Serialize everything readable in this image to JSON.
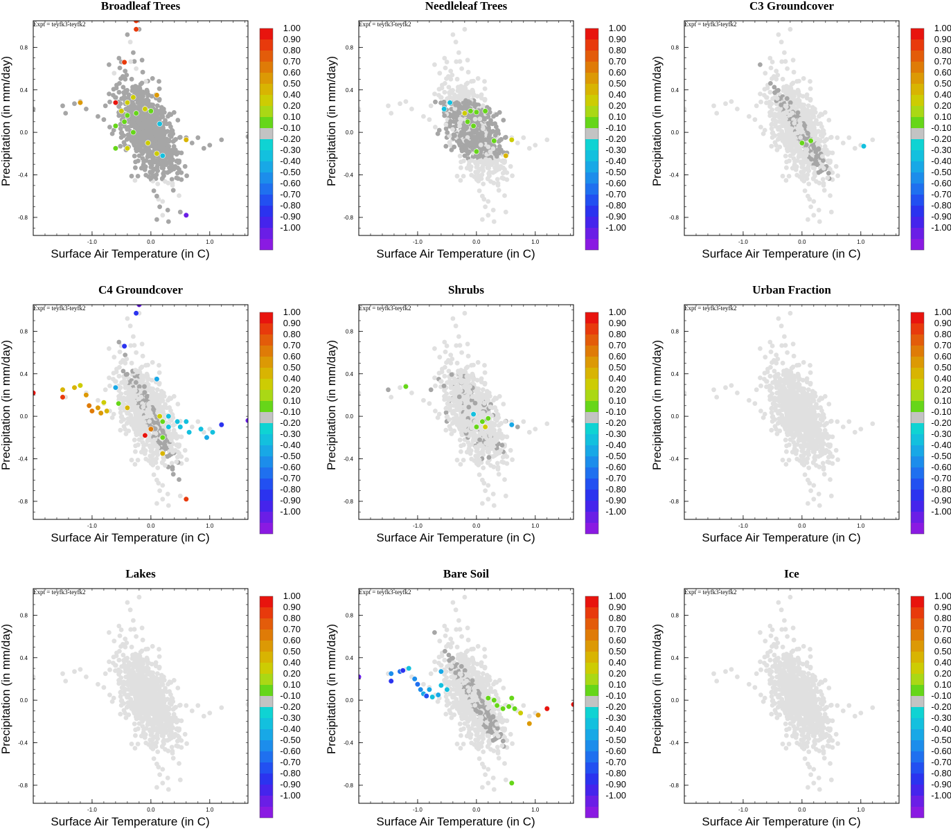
{
  "figure": {
    "expt_label": "Expt = teyfk3-teyfk2",
    "colorbar_ticks": [
      "1.00",
      "0.90",
      "0.80",
      "0.70",
      "0.60",
      "0.50",
      "0.40",
      "0.20",
      "0.10",
      "-0.10",
      "-0.20",
      "-0.30",
      "-0.40",
      "-0.50",
      "-0.60",
      "-0.70",
      "-0.80",
      "-0.90",
      "-1.00"
    ],
    "colorbar_colors": [
      "#e8140e",
      "#e83a0c",
      "#e35c0a",
      "#df7b07",
      "#dc9905",
      "#d8b402",
      "#cdcc03",
      "#aad815",
      "#66d619",
      "#c3c3c3",
      "#0fd3d3",
      "#13c0de",
      "#18a8e6",
      "#1c8deb",
      "#1f70ef",
      "#2250f1",
      "#2b33ef",
      "#4524ec",
      "#6a1ee6",
      "#8a1ae2"
    ],
    "gray_dark": "#a6a6a6",
    "gray_light": "#e0e0e0"
  },
  "chart_data": [
    {
      "type": "scatter",
      "title": "Broadleaf Trees",
      "xlabel": "Surface Air Temperature (in C)",
      "ylabel": "Precipitation (in mm/day)",
      "xlim": [
        -2.0,
        1.65
      ],
      "ylim": [
        -0.97,
        1.05
      ],
      "xticks": [
        "-1.0",
        "0.0",
        "1.0"
      ],
      "yticks": [
        "0.8",
        "0.4",
        "0.0",
        "-0.4",
        "-0.8"
      ],
      "colorbar_range": [
        -1.0,
        1.0
      ],
      "background": "dark",
      "dark_region": "mid",
      "highlight_points": [
        {
          "x": -0.25,
          "y": 1.05,
          "c": 0.8
        },
        {
          "x": -0.25,
          "y": 0.97,
          "c": 0.8
        },
        {
          "x": -0.45,
          "y": 0.66,
          "c": 0.8
        },
        {
          "x": -1.2,
          "y": 0.28,
          "c": 0.5
        },
        {
          "x": -0.6,
          "y": 0.28,
          "c": 0.9
        },
        {
          "x": -0.4,
          "y": 0.28,
          "c": 0.3
        },
        {
          "x": 0.1,
          "y": 0.35,
          "c": 0.5
        },
        {
          "x": -0.3,
          "y": 0.33,
          "c": 0.3
        },
        {
          "x": -0.5,
          "y": 0.2,
          "c": 0.3
        },
        {
          "x": -0.4,
          "y": 0.16,
          "c": 0.15
        },
        {
          "x": -0.25,
          "y": 0.18,
          "c": 0.15
        },
        {
          "x": -0.1,
          "y": 0.22,
          "c": 0.3
        },
        {
          "x": 0.0,
          "y": 0.2,
          "c": 0.15
        },
        {
          "x": -0.6,
          "y": 0.06,
          "c": 0.15
        },
        {
          "x": -0.45,
          "y": 0.1,
          "c": 0.15
        },
        {
          "x": 0.15,
          "y": 0.08,
          "c": -0.3
        },
        {
          "x": -0.3,
          "y": 0.0,
          "c": 0.15
        },
        {
          "x": -0.6,
          "y": -0.15,
          "c": 0.15
        },
        {
          "x": -0.4,
          "y": -0.15,
          "c": 0.3
        },
        {
          "x": -0.05,
          "y": -0.1,
          "c": 0.3
        },
        {
          "x": 0.1,
          "y": -0.2,
          "c": 0.3
        },
        {
          "x": 0.6,
          "y": -0.07,
          "c": 0.4
        },
        {
          "x": 0.2,
          "y": -0.22,
          "c": -0.3
        },
        {
          "x": 0.6,
          "y": -0.78,
          "c": -0.9
        }
      ]
    },
    {
      "type": "scatter",
      "title": "Needleleaf Trees",
      "xlabel": "Surface Air Temperature (in C)",
      "ylabel": "Precipitation (in mm/day)",
      "xlim": [
        -2.0,
        1.65
      ],
      "ylim": [
        -0.97,
        1.05
      ],
      "xticks": [
        "-1.0",
        "0.0",
        "1.0"
      ],
      "yticks": [
        "0.8",
        "0.4",
        "0.0",
        "-0.4",
        "-0.8"
      ],
      "colorbar_range": [
        -1.0,
        1.0
      ],
      "background": "mixed",
      "dark_region": "band",
      "highlight_points": [
        {
          "x": -0.45,
          "y": 0.28,
          "c": -0.25
        },
        {
          "x": -0.2,
          "y": 0.18,
          "c": 0.3
        },
        {
          "x": -0.1,
          "y": 0.2,
          "c": 0.15
        },
        {
          "x": 0.0,
          "y": 0.19,
          "c": 0.15
        },
        {
          "x": 0.15,
          "y": 0.2,
          "c": 0.15
        },
        {
          "x": -0.15,
          "y": 0.1,
          "c": 0.15
        },
        {
          "x": -0.05,
          "y": 0.06,
          "c": 0.15
        },
        {
          "x": -0.55,
          "y": 0.22,
          "c": -0.25
        },
        {
          "x": 0.3,
          "y": -0.08,
          "c": 0.15
        },
        {
          "x": 0.6,
          "y": -0.07,
          "c": 0.3
        },
        {
          "x": 0.5,
          "y": -0.22,
          "c": 0.4
        },
        {
          "x": 0.0,
          "y": -0.18,
          "c": 0.15
        }
      ]
    },
    {
      "type": "scatter",
      "title": "C3 Groundcover",
      "xlabel": "Surface Air Temperature (in C)",
      "ylabel": "Precipitation (in mm/day)",
      "xlim": [
        -2.0,
        1.65
      ],
      "ylim": [
        -0.97,
        1.05
      ],
      "xticks": [
        "-1.0",
        "0.0",
        "1.0"
      ],
      "yticks": [
        "0.8",
        "0.4",
        "0.0",
        "-0.4",
        "-0.8"
      ],
      "colorbar_range": [
        -1.0,
        1.0
      ],
      "background": "light",
      "dark_region": "diagonal",
      "highlight_points": [
        {
          "x": 0.0,
          "y": -0.1,
          "c": 0.15
        },
        {
          "x": 0.15,
          "y": -0.08,
          "c": 0.15
        },
        {
          "x": 1.05,
          "y": -0.13,
          "c": -0.3
        }
      ]
    },
    {
      "type": "scatter",
      "title": "C4 Groundcover",
      "xlabel": "Surface Air Temperature (in C)",
      "ylabel": "Precipitation (in mm/day)",
      "xlim": [
        -2.0,
        1.65
      ],
      "ylim": [
        -0.97,
        1.05
      ],
      "xticks": [
        "-1.0",
        "0.0",
        "1.0"
      ],
      "yticks": [
        "0.8",
        "0.4",
        "0.0",
        "-0.4",
        "-0.8"
      ],
      "colorbar_range": [
        -1.0,
        1.0
      ],
      "background": "light",
      "dark_region": "diagonal-long",
      "highlight_points": [
        {
          "x": -2.0,
          "y": 0.22,
          "c": 0.9
        },
        {
          "x": -1.5,
          "y": 0.25,
          "c": 0.4
        },
        {
          "x": -1.5,
          "y": 0.18,
          "c": 0.8
        },
        {
          "x": -1.3,
          "y": 0.27,
          "c": 0.4
        },
        {
          "x": -1.2,
          "y": 0.29,
          "c": 0.3
        },
        {
          "x": -1.1,
          "y": 0.2,
          "c": 0.5
        },
        {
          "x": -1.05,
          "y": 0.1,
          "c": 0.6
        },
        {
          "x": -1.0,
          "y": 0.05,
          "c": 0.6
        },
        {
          "x": -0.9,
          "y": 0.08,
          "c": 0.5
        },
        {
          "x": -0.85,
          "y": 0.03,
          "c": 0.5
        },
        {
          "x": -0.8,
          "y": 0.13,
          "c": 0.3
        },
        {
          "x": -0.75,
          "y": 0.05,
          "c": 0.4
        },
        {
          "x": -0.6,
          "y": 0.27,
          "c": -0.4
        },
        {
          "x": -0.55,
          "y": 0.12,
          "c": 0.15
        },
        {
          "x": -0.4,
          "y": 0.08,
          "c": 0.4
        },
        {
          "x": -0.25,
          "y": 0.97,
          "c": -0.8
        },
        {
          "x": -0.2,
          "y": 1.05,
          "c": -0.9
        },
        {
          "x": -0.45,
          "y": 0.66,
          "c": -0.8
        },
        {
          "x": 0.1,
          "y": 0.35,
          "c": -0.4
        },
        {
          "x": 0.15,
          "y": 0.0,
          "c": 0.3
        },
        {
          "x": 0.2,
          "y": -0.05,
          "c": 0.15
        },
        {
          "x": 0.3,
          "y": 0.0,
          "c": -0.25
        },
        {
          "x": 0.3,
          "y": -0.1,
          "c": -0.3
        },
        {
          "x": 0.0,
          "y": -0.12,
          "c": 0.6
        },
        {
          "x": -0.1,
          "y": -0.18,
          "c": 0.9
        },
        {
          "x": 0.2,
          "y": -0.2,
          "c": 0.15
        },
        {
          "x": 0.45,
          "y": -0.05,
          "c": -0.25
        },
        {
          "x": 0.5,
          "y": -0.1,
          "c": -0.3
        },
        {
          "x": 0.6,
          "y": -0.05,
          "c": -0.25
        },
        {
          "x": 0.65,
          "y": -0.15,
          "c": -0.3
        },
        {
          "x": 0.85,
          "y": -0.12,
          "c": -0.3
        },
        {
          "x": 0.95,
          "y": -0.2,
          "c": -0.4
        },
        {
          "x": 1.05,
          "y": -0.15,
          "c": -0.3
        },
        {
          "x": 1.2,
          "y": -0.08,
          "c": -0.8
        },
        {
          "x": 1.65,
          "y": -0.04,
          "c": -0.9
        },
        {
          "x": 0.2,
          "y": -0.35,
          "c": 0.4
        },
        {
          "x": 0.6,
          "y": -0.78,
          "c": 0.8
        }
      ]
    },
    {
      "type": "scatter",
      "title": "Shrubs",
      "xlabel": "Surface Air Temperature (in C)",
      "ylabel": "Precipitation (in mm/day)",
      "xlim": [
        -2.0,
        1.65
      ],
      "ylim": [
        -0.97,
        1.05
      ],
      "xticks": [
        "-1.0",
        "0.0",
        "1.0"
      ],
      "yticks": [
        "0.8",
        "0.4",
        "0.0",
        "-0.4",
        "-0.8"
      ],
      "colorbar_range": [
        -1.0,
        1.0
      ],
      "background": "light",
      "dark_region": "sparse",
      "highlight_points": [
        {
          "x": -1.2,
          "y": 0.28,
          "c": 0.15
        },
        {
          "x": 0.2,
          "y": -0.02,
          "c": 0.15
        },
        {
          "x": 0.1,
          "y": -0.05,
          "c": 0.15
        },
        {
          "x": 0.0,
          "y": -0.1,
          "c": 0.15
        },
        {
          "x": 0.15,
          "y": -0.1,
          "c": 0.3
        },
        {
          "x": 0.6,
          "y": -0.08,
          "c": -0.4
        },
        {
          "x": -0.05,
          "y": 0.02,
          "c": -0.25
        }
      ]
    },
    {
      "type": "scatter",
      "title": "Urban Fraction",
      "xlabel": "Surface Air Temperature (in C)",
      "ylabel": "Precipitation (in mm/day)",
      "xlim": [
        -2.0,
        1.65
      ],
      "ylim": [
        -0.97,
        1.05
      ],
      "xticks": [
        "-1.0",
        "0.0",
        "1.0"
      ],
      "yticks": [
        "0.8",
        "0.4",
        "0.0",
        "-0.4",
        "-0.8"
      ],
      "colorbar_range": [
        -1.0,
        1.0
      ],
      "background": "light",
      "dark_region": "none",
      "highlight_points": []
    },
    {
      "type": "scatter",
      "title": "Lakes",
      "xlabel": "Surface Air Temperature (in C)",
      "ylabel": "Precipitation (in mm/day)",
      "xlim": [
        -2.0,
        1.65
      ],
      "ylim": [
        -0.97,
        1.05
      ],
      "xticks": [
        "-1.0",
        "0.0",
        "1.0"
      ],
      "yticks": [
        "0.8",
        "0.4",
        "0.0",
        "-0.4",
        "-0.8"
      ],
      "colorbar_range": [
        -1.0,
        1.0
      ],
      "background": "light",
      "dark_region": "none",
      "highlight_points": []
    },
    {
      "type": "scatter",
      "title": "Bare Soil",
      "xlabel": "Surface Air Temperature (in C)",
      "ylabel": "Precipitation (in mm/day)",
      "xlim": [
        -2.0,
        1.65
      ],
      "ylim": [
        -0.97,
        1.05
      ],
      "xticks": [
        "-1.0",
        "0.0",
        "1.0"
      ],
      "yticks": [
        "0.8",
        "0.4",
        "0.0",
        "-0.4",
        "-0.8"
      ],
      "colorbar_range": [
        -1.0,
        1.0
      ],
      "background": "light",
      "dark_region": "diagonal",
      "highlight_points": [
        {
          "x": -2.0,
          "y": 0.22,
          "c": -0.9
        },
        {
          "x": -1.45,
          "y": 0.25,
          "c": -0.5
        },
        {
          "x": -1.45,
          "y": 0.18,
          "c": -0.8
        },
        {
          "x": -1.3,
          "y": 0.27,
          "c": -0.6
        },
        {
          "x": -1.25,
          "y": 0.28,
          "c": -0.8
        },
        {
          "x": -1.15,
          "y": 0.3,
          "c": -0.3
        },
        {
          "x": -1.05,
          "y": 0.2,
          "c": -0.5
        },
        {
          "x": -1.0,
          "y": 0.15,
          "c": -0.6
        },
        {
          "x": -0.95,
          "y": 0.1,
          "c": -0.5
        },
        {
          "x": -0.9,
          "y": 0.06,
          "c": -0.4
        },
        {
          "x": -0.85,
          "y": 0.04,
          "c": -0.7
        },
        {
          "x": -0.8,
          "y": 0.1,
          "c": -0.4
        },
        {
          "x": -0.75,
          "y": 0.03,
          "c": -0.3
        },
        {
          "x": -0.65,
          "y": 0.05,
          "c": -0.4
        },
        {
          "x": -0.6,
          "y": 0.14,
          "c": -0.3
        },
        {
          "x": -0.5,
          "y": 0.1,
          "c": -0.25
        },
        {
          "x": -0.6,
          "y": 0.27,
          "c": -0.4
        },
        {
          "x": 0.2,
          "y": 0.02,
          "c": 0.15
        },
        {
          "x": 0.3,
          "y": 0.0,
          "c": 0.15
        },
        {
          "x": 0.35,
          "y": -0.05,
          "c": 0.15
        },
        {
          "x": 0.45,
          "y": -0.08,
          "c": 0.15
        },
        {
          "x": 0.55,
          "y": -0.06,
          "c": 0.15
        },
        {
          "x": 0.6,
          "y": 0.02,
          "c": 0.15
        },
        {
          "x": 0.65,
          "y": -0.08,
          "c": 0.15
        },
        {
          "x": 0.75,
          "y": -0.12,
          "c": 0.3
        },
        {
          "x": 0.9,
          "y": -0.22,
          "c": 0.5
        },
        {
          "x": 1.05,
          "y": -0.14,
          "c": 0.5
        },
        {
          "x": 1.2,
          "y": -0.08,
          "c": 0.9
        },
        {
          "x": 1.65,
          "y": -0.04,
          "c": 0.9
        },
        {
          "x": 0.6,
          "y": -0.78,
          "c": 0.15
        }
      ]
    },
    {
      "type": "scatter",
      "title": "Ice",
      "xlabel": "Surface Air Temperature (in C)",
      "ylabel": "Precipitation (in mm/day)",
      "xlim": [
        -2.0,
        1.65
      ],
      "ylim": [
        -0.97,
        1.05
      ],
      "xticks": [
        "-1.0",
        "0.0",
        "1.0"
      ],
      "yticks": [
        "0.8",
        "0.4",
        "0.0",
        "-0.4",
        "-0.8"
      ],
      "colorbar_range": [
        -1.0,
        1.0
      ],
      "background": "light",
      "dark_region": "none",
      "highlight_points": []
    }
  ]
}
